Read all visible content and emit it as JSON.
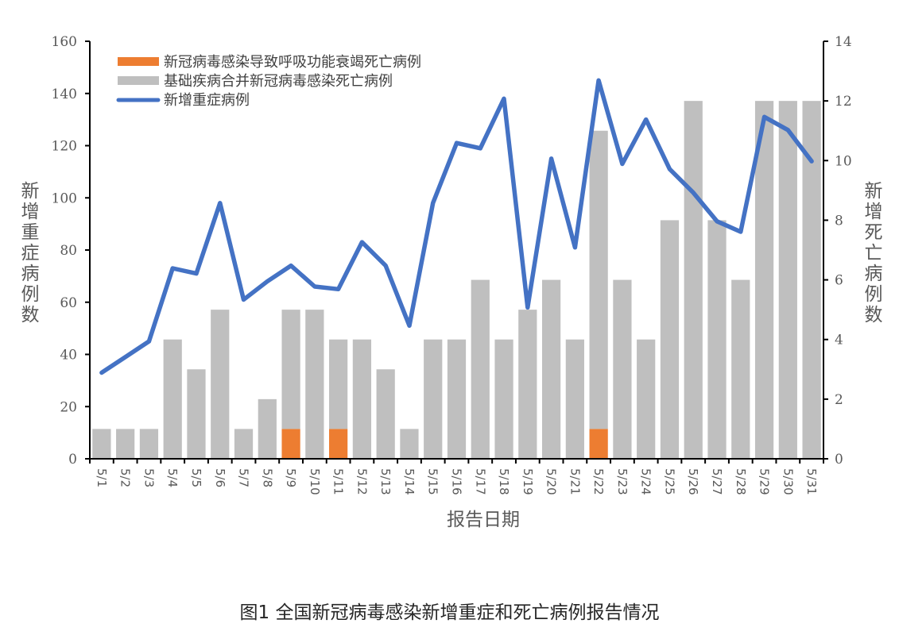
{
  "caption": "图1 全国新冠病毒感染新增重症和死亡病例报告情况",
  "colors": {
    "respiratory_failure_deaths": "#ED7D31",
    "comorbidity_deaths": "#BFBFBF",
    "new_severe_cases": "#4472C4",
    "axis": "#000000",
    "text": "#595959"
  },
  "chart_data": {
    "type": "bar+line",
    "title": "图1 全国新冠病毒感染新增重症和死亡病例报告情况",
    "xlabel": "报告日期",
    "ylabel_left": "新增重症病例数",
    "ylabel_right": "新增死亡病例数",
    "ylim_left": [
      0,
      160
    ],
    "ylim_right": [
      0,
      14
    ],
    "yticks_left": [
      0,
      20,
      40,
      60,
      80,
      100,
      120,
      140,
      160
    ],
    "yticks_right": [
      0,
      2,
      4,
      6,
      8,
      10,
      12,
      14
    ],
    "grid": false,
    "legend_position": "upper-left",
    "categories": [
      "5/1",
      "5/2",
      "5/3",
      "5/4",
      "5/5",
      "5/6",
      "5/7",
      "5/8",
      "5/9",
      "5/10",
      "5/11",
      "5/12",
      "5/13",
      "5/14",
      "5/15",
      "5/16",
      "5/17",
      "5/18",
      "5/19",
      "5/20",
      "5/21",
      "5/22",
      "5/23",
      "5/24",
      "5/25",
      "5/26",
      "5/27",
      "5/28",
      "5/29",
      "5/30",
      "5/31"
    ],
    "series": [
      {
        "name": "新冠病毒感染导致呼吸功能衰竭死亡病例",
        "type": "bar",
        "stack": "deaths",
        "axis": "right",
        "color": "#ED7D31",
        "values": [
          0,
          0,
          0,
          0,
          0,
          0,
          0,
          0,
          1,
          0,
          1,
          0,
          0,
          0,
          0,
          0,
          0,
          0,
          0,
          0,
          0,
          1,
          0,
          0,
          0,
          0,
          0,
          0,
          0,
          0,
          0
        ]
      },
      {
        "name": "基础疾病合并新冠病毒感染死亡病例",
        "type": "bar",
        "stack": "deaths",
        "axis": "right",
        "color": "#BFBFBF",
        "values": [
          1,
          1,
          1,
          4,
          3,
          5,
          1,
          2,
          4,
          5,
          3,
          4,
          3,
          1,
          4,
          4,
          6,
          4,
          5,
          6,
          4,
          10,
          6,
          4,
          8,
          12,
          8,
          6,
          12,
          12,
          12
        ]
      },
      {
        "name": "新增重症病例",
        "type": "line",
        "axis": "left",
        "color": "#4472C4",
        "values": [
          33,
          39,
          45,
          73,
          71,
          98,
          61,
          68,
          74,
          66,
          65,
          83,
          74,
          51,
          98,
          121,
          119,
          138,
          58,
          115,
          81,
          145,
          113,
          130,
          111,
          102,
          91,
          87,
          131,
          126,
          114
        ]
      }
    ]
  }
}
